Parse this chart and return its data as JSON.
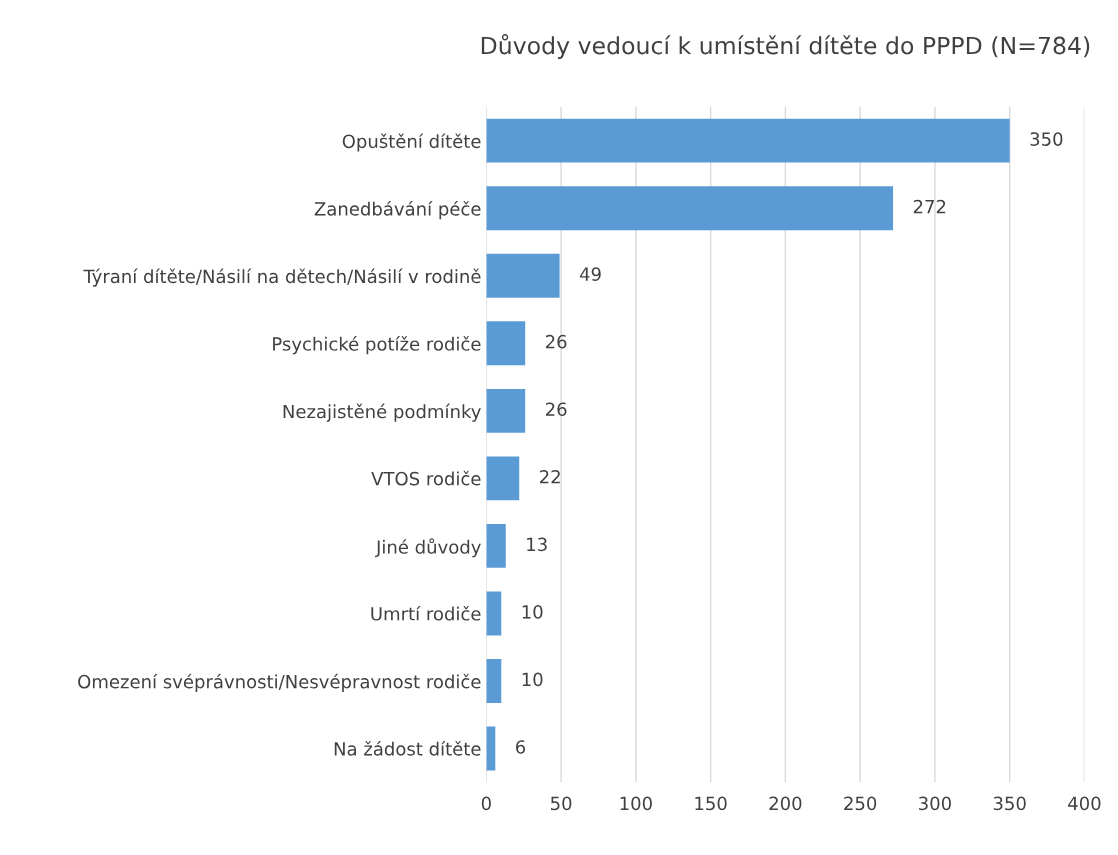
{
  "chart_data": {
    "type": "bar",
    "orientation": "horizontal",
    "title": "Důvody vedoucí k umístění dítěte do PPPD (N=784)",
    "categories": [
      "Opuštění dítěte",
      "Zanedbávání péče",
      "Týraní dítěte/Násilí na dětech/Násilí v rodině",
      "Psychické potíže rodiče",
      "Nezajistěné podmínky",
      "VTOS rodiče",
      "Jiné důvody",
      "Umrtí rodiče",
      "Omezení svéprávnosti/Nesvépravnost rodiče",
      "Na žádost dítěte"
    ],
    "values": [
      350,
      272,
      49,
      26,
      26,
      22,
      13,
      10,
      10,
      6
    ],
    "color": "#5b9bd5",
    "xlim": [
      0,
      400
    ],
    "xticks": [
      0,
      50,
      100,
      150,
      200,
      250,
      300,
      350,
      400
    ],
    "grid": "x",
    "data_labels": true
  }
}
